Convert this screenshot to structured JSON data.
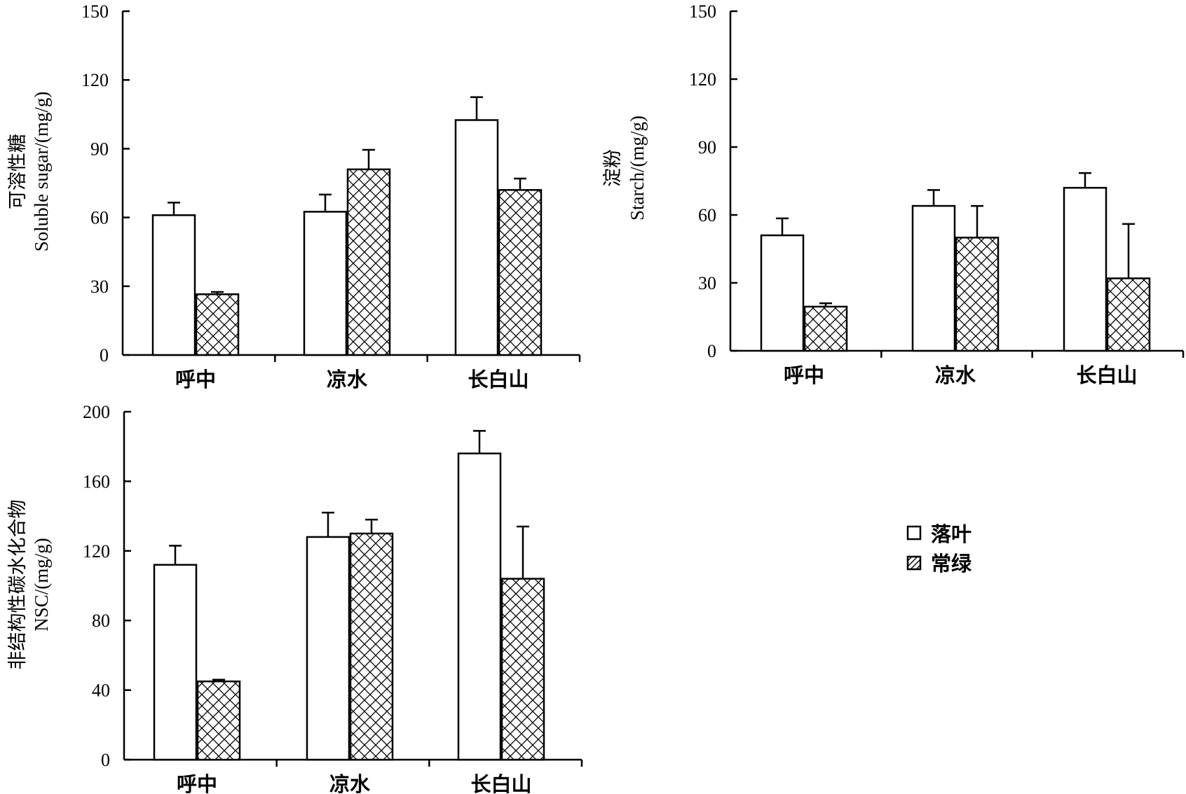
{
  "chart_data": [
    {
      "type": "bar",
      "categories": [
        "呼中",
        "凉水",
        "长白山"
      ],
      "series": [
        {
          "name": "落叶",
          "values": [
            61,
            62.5,
            102.5
          ],
          "errors": [
            5.5,
            7.5,
            10
          ]
        },
        {
          "name": "常绿",
          "values": [
            26.5,
            81,
            72
          ],
          "errors": [
            1,
            8.5,
            5
          ]
        }
      ],
      "ylabel_cn": "可溶性糖",
      "ylabel_en": "Soluble sugar/(mg/g)",
      "ylim": [
        0,
        150
      ],
      "yticks": [
        0,
        30,
        60,
        90,
        120,
        150
      ]
    },
    {
      "type": "bar",
      "categories": [
        "呼中",
        "凉水",
        "长白山"
      ],
      "series": [
        {
          "name": "落叶",
          "values": [
            51,
            64,
            72
          ],
          "errors": [
            7.5,
            7,
            6.5
          ]
        },
        {
          "name": "常绿",
          "values": [
            19.5,
            50,
            32
          ],
          "errors": [
            1.5,
            14,
            24
          ]
        }
      ],
      "ylabel_cn": "淀粉",
      "ylabel_en": "Starch/(mg/g)",
      "ylim": [
        0,
        150
      ],
      "yticks": [
        0,
        30,
        60,
        90,
        120,
        150
      ]
    },
    {
      "type": "bar",
      "categories": [
        "呼中",
        "凉水",
        "长白山"
      ],
      "series": [
        {
          "name": "落叶",
          "values": [
            112,
            128,
            176
          ],
          "errors": [
            11,
            14,
            13
          ]
        },
        {
          "name": "常绿",
          "values": [
            45,
            130,
            104
          ],
          "errors": [
            1,
            8,
            30
          ]
        }
      ],
      "ylabel_cn": "非结构性碳水化合物",
      "ylabel_en": "NSC/(mg/g)",
      "ylim": [
        0,
        200
      ],
      "yticks": [
        0,
        40,
        80,
        120,
        160,
        200
      ]
    }
  ],
  "legend": {
    "placement": "right-of-bottom-chart",
    "items": [
      {
        "label": "落叶",
        "pattern": "empty"
      },
      {
        "label": "常绿",
        "pattern": "crosshatch"
      }
    ]
  },
  "colors": {
    "bar_fill": "#ffffff",
    "stroke": "#000000"
  }
}
